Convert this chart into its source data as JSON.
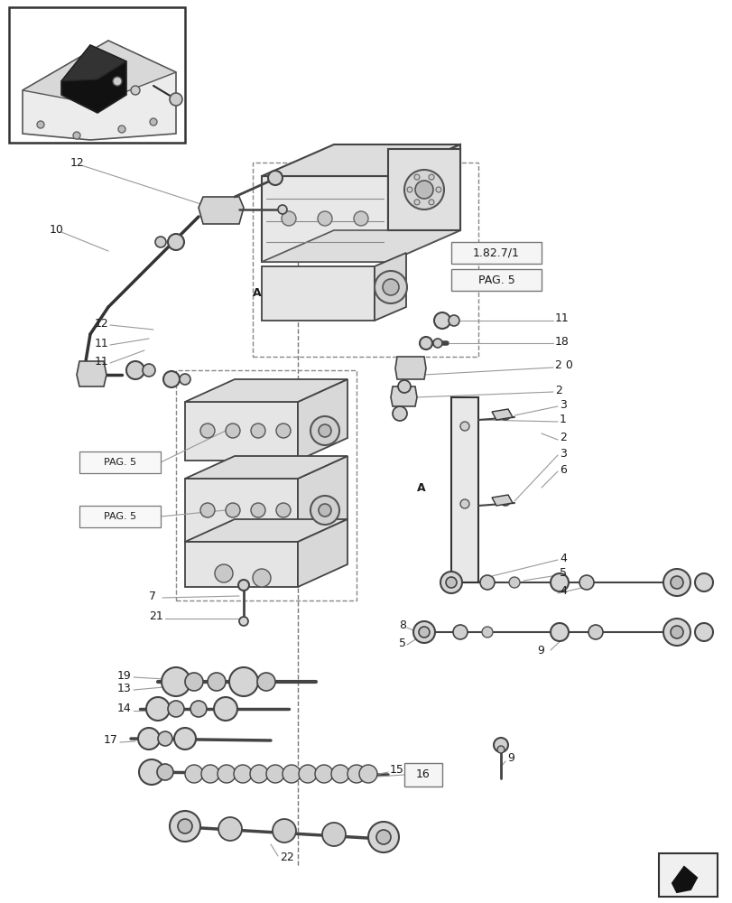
{
  "bg_color": "#ffffff",
  "line_color": "#2a2a2a",
  "light_line_color": "#999999",
  "dashed_color": "#666666",
  "figsize": [
    8.12,
    10.0
  ],
  "dpi": 100,
  "labels": {
    "ref_box1": "1.82.7/1",
    "ref_box2": "PAG. 5",
    "pag5_left1": "PAG. 5",
    "pag5_left2": "PAG. 5",
    "label_12_top": "12",
    "label_10": "10",
    "label_12": "12",
    "label_11a": "11",
    "label_11b": "11",
    "label_11c": "11",
    "label_18": "18",
    "label_20": "2 0",
    "label_2a": "2",
    "label_3a": "3",
    "label_1": "1",
    "label_2b": "2",
    "label_3b": "3",
    "label_6": "6",
    "label_4a": "4",
    "label_5a": "5",
    "label_4b": "4",
    "label_8": "8",
    "label_5b": "5",
    "label_9": "9",
    "label_7": "7",
    "label_21": "21",
    "label_19": "19",
    "label_13": "13",
    "label_14": "14",
    "label_17": "17",
    "label_15": "15",
    "label_16": "16",
    "label_22": "22",
    "label_A_right": "A",
    "label_A_left": "A"
  }
}
